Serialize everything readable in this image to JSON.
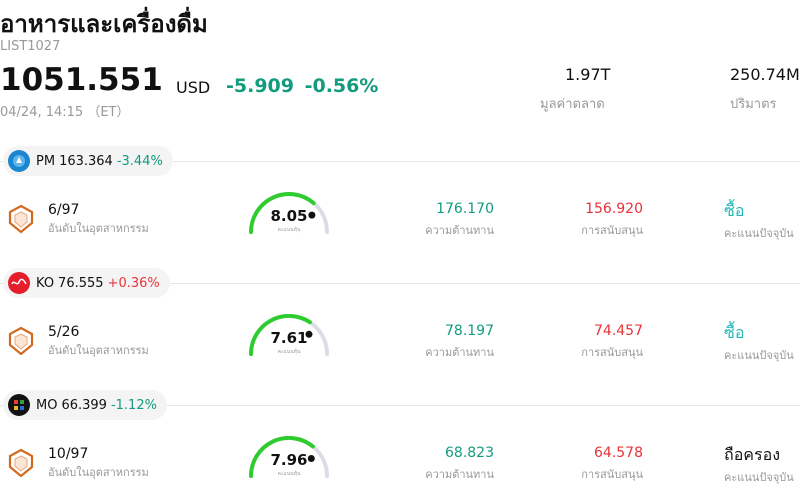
{
  "header": {
    "title": "อาหารและเครื่องดื่ม",
    "code": "LIST1027",
    "price": "1051.551",
    "currency": "USD",
    "change": "-5.909",
    "change_pct": "-0.56%",
    "timestamp": "04/24, 14:15 （ET）",
    "market_cap_value": "1.97T",
    "market_cap_label": "มูลค่าตลาด",
    "volume_value": "250.74M",
    "volume_label": "ปริมาตร"
  },
  "labels": {
    "rank_caption": "อันดับในอุตสาหกรรม",
    "gauge_caption": "คะแนนหุ้น",
    "resistance_caption": "ความต้านทาน",
    "support_caption": "การสนับสนุน",
    "rating_caption": "คะแนนปัจจุบัน"
  },
  "stocks": [
    {
      "ticker": "PM",
      "price": "163.364",
      "change_pct": "-3.44%",
      "direction": "down",
      "logo_color": "#1a86d0",
      "logo_icon": "pm-logo-icon",
      "rank": "6/97",
      "score": "8.05",
      "score_fraction": 0.805,
      "resistance": "176.170",
      "support": "156.920",
      "rating": "ซื้อ",
      "rating_type": "buy"
    },
    {
      "ticker": "KO",
      "price": "76.555",
      "change_pct": "+0.36%",
      "direction": "up",
      "logo_color": "#e41e2b",
      "logo_icon": "coca-cola-logo-icon",
      "rank": "5/26",
      "score": "7.61",
      "score_fraction": 0.761,
      "resistance": "78.197",
      "support": "74.457",
      "rating": "ซื้อ",
      "rating_type": "buy"
    },
    {
      "ticker": "MO",
      "price": "66.399",
      "change_pct": "-1.12%",
      "direction": "down",
      "logo_color": "#111111",
      "logo_icon": "altria-logo-icon",
      "rank": "10/97",
      "score": "7.96",
      "score_fraction": 0.796,
      "resistance": "68.823",
      "support": "64.578",
      "rating": "ถือครอง",
      "rating_type": "hold"
    }
  ],
  "colors": {
    "negative": "#139b7f",
    "positive": "#e8333a",
    "buy": "#22b8b8",
    "gauge_green": "#2ecc2e",
    "gauge_track": "#dcdce6"
  }
}
